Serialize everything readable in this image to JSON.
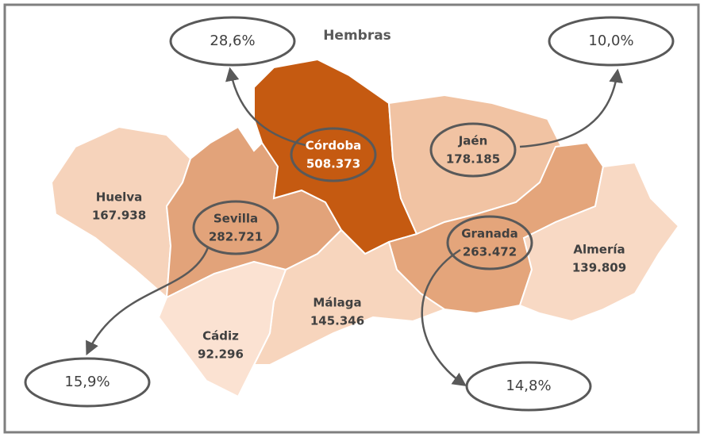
{
  "title": "Hembras",
  "regions": [
    {
      "name": "Huelva",
      "value": "167.938",
      "color": "#f6d3bb",
      "circled": false
    },
    {
      "name": "Sevilla",
      "value": "282.721",
      "color": "#e2a37a",
      "circled": true
    },
    {
      "name": "Córdoba",
      "value": "508.373",
      "color": "#c55a11",
      "circled": true
    },
    {
      "name": "Jaén",
      "value": "178.185",
      "color": "#f1c3a3",
      "circled": true
    },
    {
      "name": "Granada",
      "value": "263.472",
      "color": "#e4a57b",
      "circled": true
    },
    {
      "name": "Almería",
      "value": "139.809",
      "color": "#f8d9c4",
      "circled": false
    },
    {
      "name": "Málaga",
      "value": "145.346",
      "color": "#f7d5bd",
      "circled": false
    },
    {
      "name": "Cádiz",
      "value": "92.296",
      "color": "#fbe2d2",
      "circled": false
    }
  ],
  "callouts": [
    {
      "text": "28,6%",
      "region": 2
    },
    {
      "text": "10,0%",
      "region": 3
    },
    {
      "text": "15,9%",
      "region": 1
    },
    {
      "text": "14,8%",
      "region": 4
    }
  ]
}
